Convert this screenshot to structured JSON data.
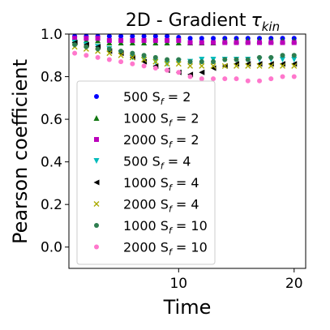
{
  "chart_data": {
    "type": "scatter",
    "title": "2D - Gradient",
    "title_math": "τ",
    "title_sub": "kin",
    "xlabel": "Time",
    "ylabel": "Pearson coefficient",
    "xlim": [
      0.5,
      21
    ],
    "ylim": [
      -0.1,
      1.0
    ],
    "xticks": [
      10,
      20
    ],
    "yticks": [
      0.0,
      0.2,
      0.4,
      0.6,
      0.8,
      1.0
    ],
    "xtick_labels": [
      "10",
      "20"
    ],
    "ytick_labels": [
      "0.0",
      "0.2",
      "0.4",
      "0.6",
      "0.8",
      "1.0"
    ],
    "grid": false,
    "legend_position": "lower-left",
    "x": [
      1,
      2,
      3,
      4,
      5,
      6,
      7,
      8,
      9,
      10,
      11,
      12,
      13,
      14,
      15,
      16,
      17,
      18,
      19,
      20
    ],
    "series": [
      {
        "name": "500 S_f = 2",
        "label_main": "500 S",
        "label_sub": "f",
        "label_tail": " = 2",
        "marker": "circle",
        "color": "#0000ff",
        "values": [
          0.99,
          0.99,
          0.99,
          0.99,
          0.99,
          0.99,
          0.99,
          0.99,
          0.99,
          0.985,
          0.98,
          0.98,
          0.98,
          0.98,
          0.98,
          0.98,
          0.98,
          0.98,
          0.98,
          0.98
        ]
      },
      {
        "name": "1000 S_f = 2",
        "label_main": "1000 S",
        "label_sub": "f",
        "label_tail": " = 2",
        "marker": "triangle-up",
        "color": "#117711",
        "values": [
          0.97,
          0.97,
          0.97,
          0.96,
          0.96,
          0.96,
          0.96,
          0.96,
          0.96,
          0.96,
          0.96,
          0.96,
          0.96,
          0.97,
          0.97,
          0.97,
          0.97,
          0.97,
          0.97,
          0.97
        ]
      },
      {
        "name": "2000 S_f = 2",
        "label_main": "2000 S",
        "label_sub": "f",
        "label_tail": " = 2",
        "marker": "square",
        "color": "#bb00bb",
        "values": [
          0.98,
          0.98,
          0.98,
          0.97,
          0.97,
          0.97,
          0.97,
          0.97,
          0.97,
          0.97,
          0.96,
          0.96,
          0.96,
          0.96,
          0.96,
          0.96,
          0.96,
          0.96,
          0.96,
          0.96
        ]
      },
      {
        "name": "500 S_f = 4",
        "label_main": "500 S",
        "label_sub": "f",
        "label_tail": " = 4",
        "marker": "triangle-down",
        "color": "#00bbbb",
        "values": [
          0.96,
          0.95,
          0.94,
          0.93,
          0.91,
          0.89,
          0.88,
          0.87,
          0.86,
          0.87,
          0.87,
          0.88,
          0.88,
          0.88,
          0.88,
          0.88,
          0.88,
          0.88,
          0.88,
          0.88
        ]
      },
      {
        "name": "1000 S_f = 4",
        "label_main": "1000 S",
        "label_sub": "f",
        "label_tail": " = 4",
        "marker": "triangle-left",
        "color": "#000000",
        "values": [
          0.96,
          0.95,
          0.94,
          0.92,
          0.91,
          0.89,
          0.87,
          0.85,
          0.83,
          0.82,
          0.81,
          0.82,
          0.84,
          0.85,
          0.86,
          0.86,
          0.86,
          0.86,
          0.86,
          0.86
        ]
      },
      {
        "name": "2000 S_f = 4",
        "label_main": "2000 S",
        "label_sub": "f",
        "label_tail": " = 4",
        "marker": "x",
        "color": "#aaaa00",
        "values": [
          0.94,
          0.93,
          0.92,
          0.91,
          0.9,
          0.89,
          0.88,
          0.87,
          0.86,
          0.86,
          0.85,
          0.85,
          0.85,
          0.85,
          0.85,
          0.85,
          0.85,
          0.85,
          0.85,
          0.85
        ]
      },
      {
        "name": "1000 S_f = 10",
        "label_main": "1000 S",
        "label_sub": "f",
        "label_tail": " = 10",
        "marker": "circle",
        "color": "#2e7d4f",
        "values": [
          0.95,
          0.94,
          0.93,
          0.93,
          0.92,
          0.91,
          0.9,
          0.89,
          0.88,
          0.88,
          0.87,
          0.87,
          0.87,
          0.88,
          0.88,
          0.88,
          0.89,
          0.89,
          0.9,
          0.9
        ]
      },
      {
        "name": "2000 S_f = 10",
        "label_main": "2000 S",
        "label_sub": "f",
        "label_tail": " = 10",
        "marker": "circle",
        "color": "#ff77cc",
        "values": [
          0.91,
          0.9,
          0.89,
          0.88,
          0.87,
          0.86,
          0.85,
          0.84,
          0.83,
          0.82,
          0.8,
          0.79,
          0.79,
          0.79,
          0.79,
          0.78,
          0.78,
          0.79,
          0.8,
          0.8
        ]
      }
    ]
  }
}
